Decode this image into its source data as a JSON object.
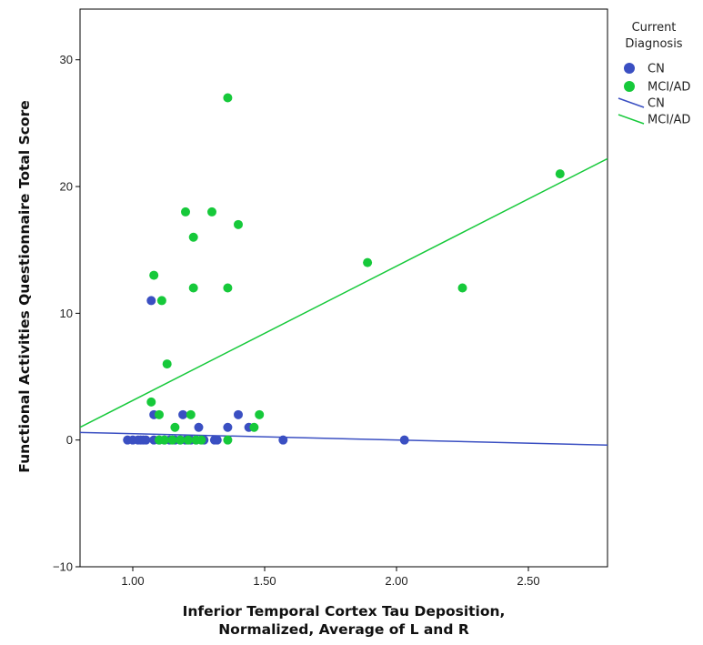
{
  "chart_data": {
    "type": "scatter",
    "title": "",
    "xlabel_lines": [
      "Inferior Temporal Cortex Tau Deposition,",
      "Normalized, Average of L and R"
    ],
    "ylabel": "Functional Activities Questionnaire Total Score",
    "xlim": [
      0.8,
      2.8
    ],
    "ylim": [
      -10,
      34
    ],
    "x_ticks": [
      1.0,
      1.5,
      2.0,
      2.5
    ],
    "x_tick_labels": [
      "1.00",
      "1.50",
      "2.00",
      "2.50"
    ],
    "y_ticks": [
      -10,
      0,
      10,
      20,
      30
    ],
    "y_tick_labels": [
      "−10",
      "0",
      "10",
      "20",
      "30"
    ],
    "grid": false,
    "legend_position": "right-top",
    "legend": {
      "title_lines": [
        "Current",
        "Diagnosis"
      ],
      "entries": [
        {
          "kind": "marker",
          "label": "CN",
          "color": "#3a4fc2"
        },
        {
          "kind": "marker",
          "label": "MCI/AD",
          "color": "#16c93a"
        },
        {
          "kind": "line",
          "label": "CN",
          "color": "#3a4fc2"
        },
        {
          "kind": "line",
          "label": "MCI/AD",
          "color": "#16c93a"
        }
      ]
    },
    "series": [
      {
        "name": "CN",
        "color": "#3a4fc2",
        "points": [
          [
            0.98,
            0
          ],
          [
            1.0,
            0
          ],
          [
            1.02,
            0
          ],
          [
            1.03,
            0
          ],
          [
            1.04,
            0
          ],
          [
            1.05,
            0
          ],
          [
            1.07,
            11
          ],
          [
            1.08,
            2
          ],
          [
            1.08,
            0
          ],
          [
            1.1,
            0
          ],
          [
            1.12,
            0
          ],
          [
            1.14,
            0
          ],
          [
            1.16,
            0
          ],
          [
            1.18,
            0
          ],
          [
            1.19,
            2
          ],
          [
            1.2,
            0
          ],
          [
            1.22,
            0
          ],
          [
            1.24,
            0
          ],
          [
            1.25,
            1
          ],
          [
            1.27,
            0
          ],
          [
            1.31,
            0
          ],
          [
            1.32,
            0
          ],
          [
            1.36,
            1
          ],
          [
            1.4,
            2
          ],
          [
            1.44,
            1
          ],
          [
            1.57,
            0
          ],
          [
            2.03,
            0
          ]
        ],
        "fit_line": {
          "x": [
            0.8,
            2.8
          ],
          "y": [
            0.6,
            -0.4
          ]
        }
      },
      {
        "name": "MCI/AD",
        "color": "#16c93a",
        "points": [
          [
            1.07,
            3
          ],
          [
            1.08,
            13
          ],
          [
            1.1,
            2
          ],
          [
            1.1,
            0
          ],
          [
            1.11,
            11
          ],
          [
            1.12,
            0
          ],
          [
            1.13,
            6
          ],
          [
            1.15,
            0
          ],
          [
            1.16,
            1
          ],
          [
            1.18,
            0
          ],
          [
            1.2,
            18
          ],
          [
            1.21,
            0
          ],
          [
            1.22,
            2
          ],
          [
            1.23,
            16
          ],
          [
            1.23,
            12
          ],
          [
            1.24,
            0
          ],
          [
            1.26,
            0
          ],
          [
            1.3,
            18
          ],
          [
            1.36,
            27
          ],
          [
            1.36,
            12
          ],
          [
            1.36,
            0
          ],
          [
            1.4,
            17
          ],
          [
            1.46,
            1
          ],
          [
            1.48,
            2
          ],
          [
            1.89,
            14
          ],
          [
            2.25,
            12
          ],
          [
            2.62,
            21
          ]
        ],
        "fit_line": {
          "x": [
            0.8,
            2.8
          ],
          "y": [
            1.0,
            22.2
          ]
        }
      }
    ]
  }
}
